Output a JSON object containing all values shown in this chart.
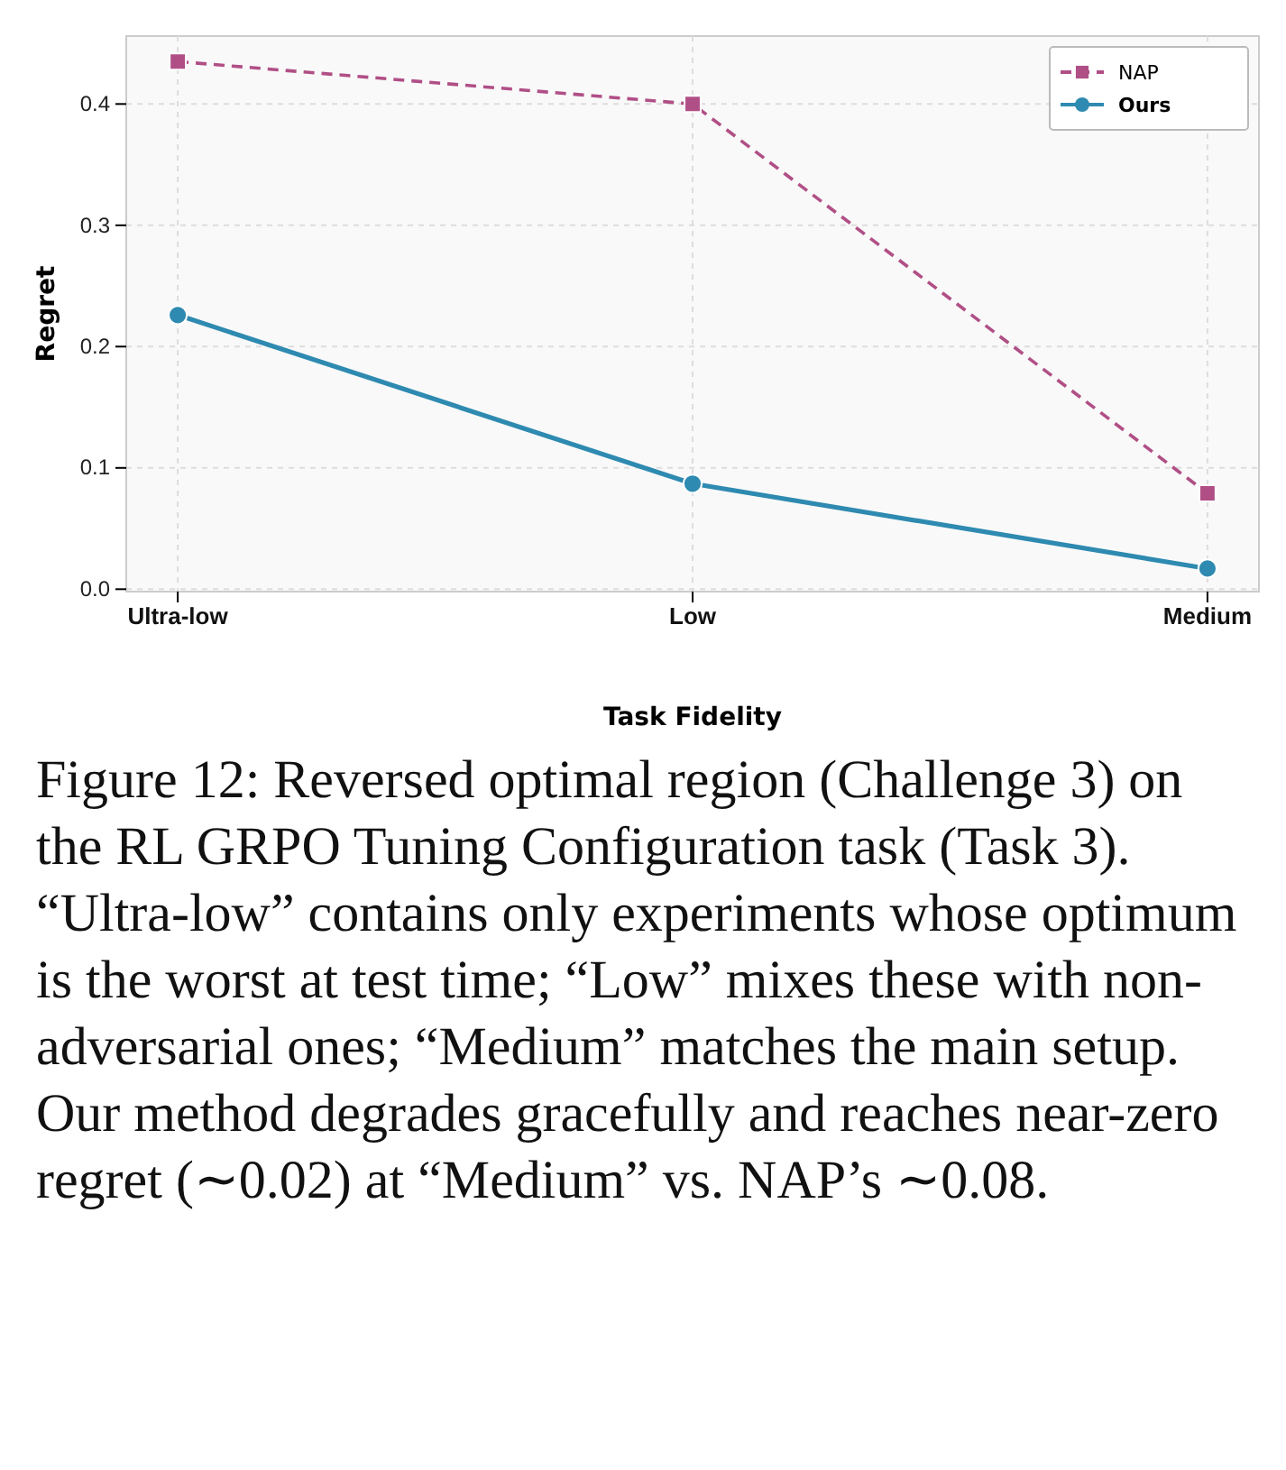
{
  "chart_data": {
    "type": "line",
    "xlabel": "Task Fidelity",
    "ylabel": "Regret",
    "categories": [
      "Ultra-low",
      "Low",
      "Medium"
    ],
    "series": [
      {
        "name": "NAP",
        "color": "#b04f86",
        "values": [
          0.435,
          0.4,
          0.079
        ],
        "marker": "square",
        "line_style": "dashed"
      },
      {
        "name": "Ours",
        "color": "#2e8ab0",
        "values": [
          0.226,
          0.087,
          0.017
        ],
        "marker": "circle",
        "line_style": "solid"
      }
    ],
    "ylim": [
      -0.002,
      0.456
    ],
    "yticks": [
      {
        "value": 0,
        "label": "0.0"
      },
      0.1,
      0.2,
      0.3,
      0.4
    ],
    "grid": true,
    "legend": "top right",
    "annotations": [
      "Figure 12: Reversed optimal region (Challenge 3) on the RL GRPO Tuning Configuration task (Task 3). “Ultra-low” contains only experiments whose optimum is the worst at test time; “Low” mixes these with non-adversarial ones; “Medium” matches the main setup. Our method degrades gracefully and reaches near-zero regret (∼0.02) at “Medium” vs. NAP’s ∼0.08."
    ]
  }
}
